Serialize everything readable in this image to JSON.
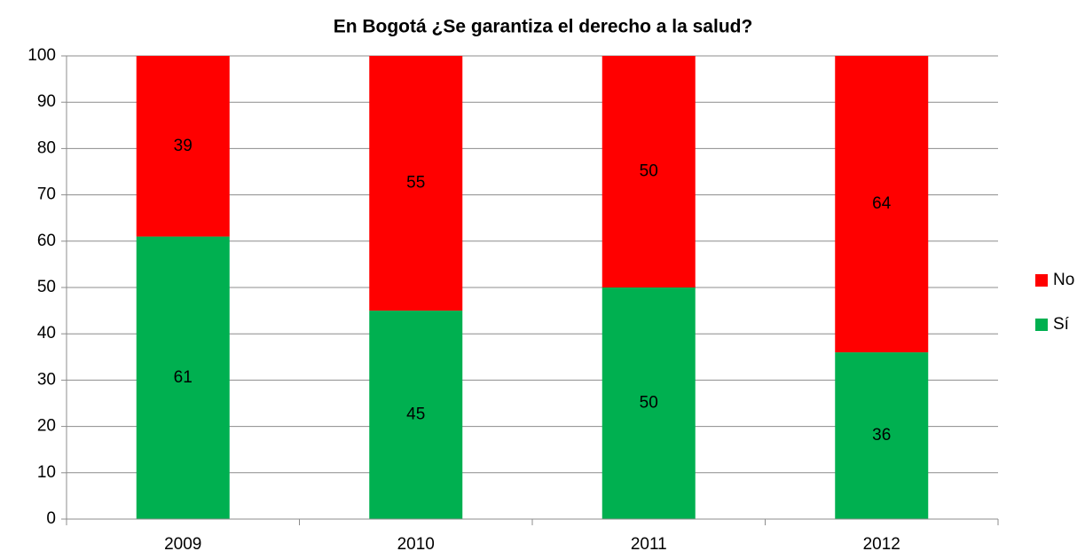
{
  "chart_data": {
    "type": "stacked_bar",
    "title": "En Bogotá ¿Se garantiza el derecho a la salud?",
    "categories": [
      "2009",
      "2010",
      "2011",
      "2012"
    ],
    "series": [
      {
        "name": "Sí",
        "color": "#00b050",
        "values": [
          61,
          45,
          50,
          36
        ]
      },
      {
        "name": "No",
        "color": "#ff0000",
        "values": [
          39,
          55,
          50,
          64
        ]
      }
    ],
    "ylim": [
      0,
      100
    ],
    "yticks": [
      0,
      10,
      20,
      30,
      40,
      50,
      60,
      70,
      80,
      90,
      100
    ],
    "grid": true,
    "legend": "right"
  }
}
